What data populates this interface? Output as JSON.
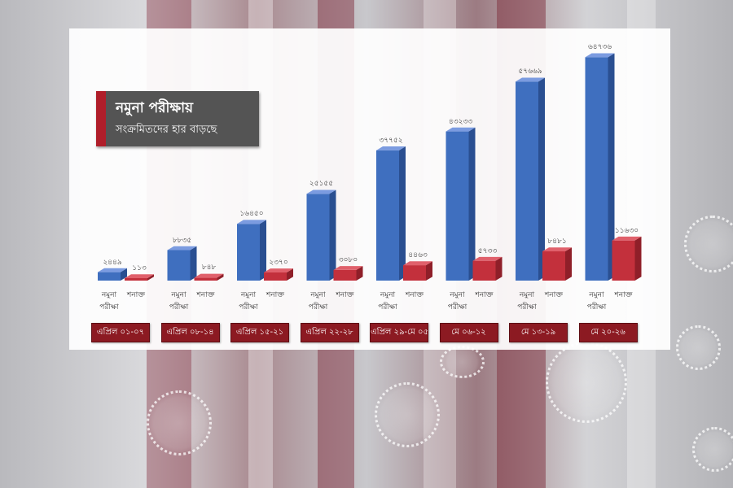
{
  "title": {
    "line1": "নমুনা পরীক্ষায়",
    "line2": "সংক্রমিতদের হার বাড়ছে"
  },
  "colors": {
    "tests_bar": "#3f6fbf",
    "detected_bar": "#c3303c",
    "date_box": "#8c1a22",
    "title_box": "#545454",
    "title_accent": "#b01e2a"
  },
  "chart_data": {
    "type": "bar",
    "categories": [
      "এপ্রিল ০১-০৭",
      "এপ্রিল ০৮-১৪",
      "এপ্রিল ১৫-২১",
      "এপ্রিল ২২-২৮",
      "এপ্রিল ২৯-মে ০৫",
      "মে ০৬-১২",
      "মে ১৩-১৯",
      "মে ২০-২৬"
    ],
    "series": [
      {
        "name": "নমুনা পরীক্ষা",
        "values": [
          2449,
          8835,
          16450,
          25155,
          37752,
          43233,
          57669,
          64736
        ],
        "labels": [
          "২৪৪৯",
          "৮৮৩৫",
          "১৬৪৫০",
          "২৫১৫৫",
          "৩৭৭৫২",
          "৪৩২৩৩",
          "৫৭৬৬৯",
          "৬৪৭৩৬"
        ]
      },
      {
        "name": "শনাক্ত",
        "values": [
          113,
          848,
          2370,
          3080,
          4463,
          5733,
          8481,
          11630
        ],
        "labels": [
          "১১৩",
          "৮৪৮",
          "২৩৭০",
          "৩০৮০",
          "৪৪৬৩",
          "৫৭৩৩",
          "৮৪৮১",
          "১১৬৩০"
        ]
      }
    ]
  }
}
